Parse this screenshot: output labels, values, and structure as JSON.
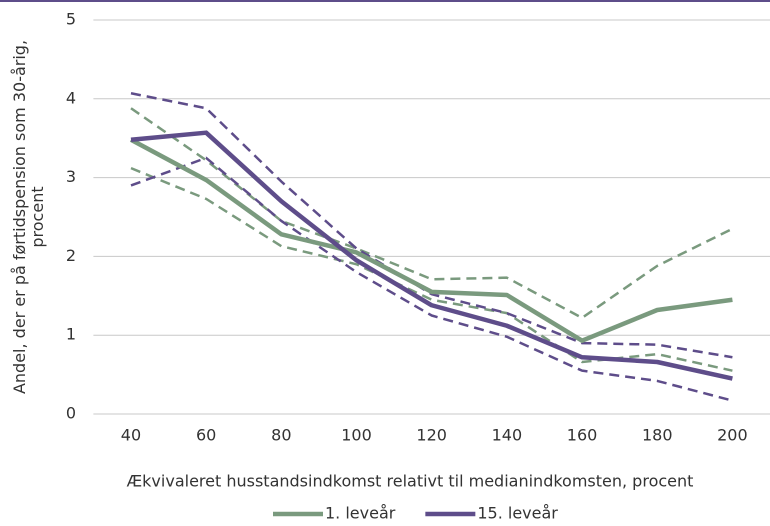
{
  "chart_data": {
    "type": "line",
    "x_label": "Ækvivaleret husstandsindkomst relativt til medianindkomsten, procent",
    "y_label": [
      "Andel, der er på førtidspension som 30-årig,",
      "procent"
    ],
    "x": [
      40,
      60,
      80,
      100,
      120,
      140,
      160,
      180,
      200
    ],
    "xlim": [
      30,
      210
    ],
    "xticks": [
      40,
      60,
      80,
      100,
      120,
      140,
      160,
      180,
      200
    ],
    "ylim": [
      0,
      5
    ],
    "yticks": [
      0,
      1,
      2,
      3,
      4,
      5
    ],
    "grid": true,
    "legend": "bottom",
    "series": [
      {
        "name": "1. leveår",
        "color": "#7a9a7e",
        "values": [
          3.48,
          2.97,
          2.28,
          2.05,
          1.55,
          1.51,
          0.93,
          1.32,
          1.45
        ],
        "upper": [
          3.88,
          3.22,
          2.45,
          2.1,
          1.71,
          1.73,
          1.22,
          1.88,
          2.35
        ],
        "lower": [
          3.12,
          2.73,
          2.13,
          1.9,
          1.45,
          1.28,
          0.66,
          0.76,
          0.55
        ]
      },
      {
        "name": "15. leveår",
        "color": "#5e4d8a",
        "values": [
          3.48,
          3.57,
          2.7,
          1.95,
          1.38,
          1.12,
          0.72,
          0.66,
          0.45
        ],
        "upper": [
          4.07,
          3.88,
          2.95,
          2.1,
          1.52,
          1.28,
          0.9,
          0.88,
          0.72
        ],
        "lower": [
          2.9,
          3.25,
          2.45,
          1.8,
          1.25,
          0.98,
          0.55,
          0.42,
          0.17
        ]
      }
    ]
  }
}
